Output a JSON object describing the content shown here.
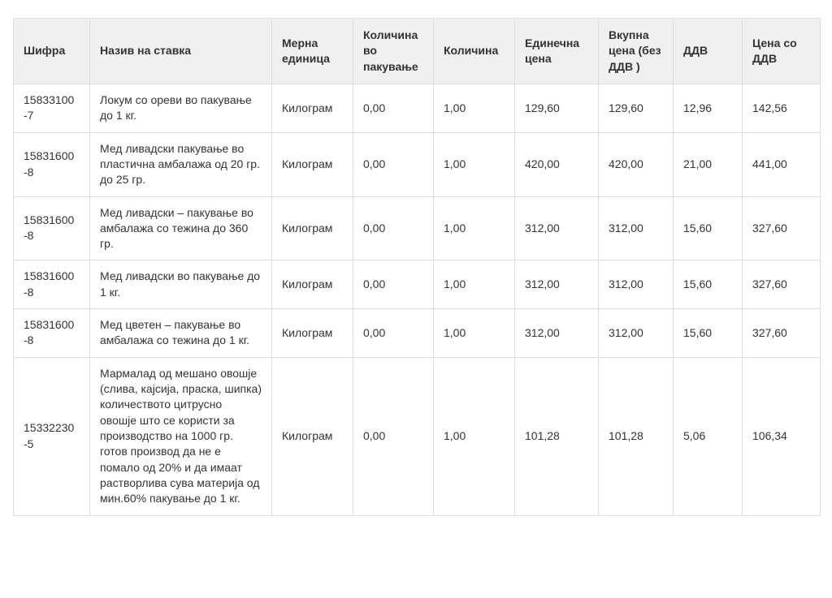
{
  "table": {
    "columns": [
      "Шифра",
      "Назив на ставка",
      "Мерна единица",
      "Количина во пакување",
      "Количина",
      "Единечна цена",
      "Вкупна цена (без ДДВ )",
      "ДДВ",
      "Цена со ДДВ"
    ],
    "rows": [
      {
        "code": "15833100\n-7",
        "name": "Локум со ореви во пакување до 1 кг.",
        "unit": "Килограм",
        "qty_per_pack": "0,00",
        "qty": "1,00",
        "unit_price": "129,60",
        "total_no_vat": "129,60",
        "vat": "12,96",
        "price_with_vat": "142,56"
      },
      {
        "code": "15831600\n-8",
        "name": "Мед ливадски пакување во пластична амбалажа од 20 гр. до 25 гр.",
        "unit": "Килограм",
        "qty_per_pack": "0,00",
        "qty": "1,00",
        "unit_price": "420,00",
        "total_no_vat": "420,00",
        "vat": "21,00",
        "price_with_vat": "441,00"
      },
      {
        "code": "15831600\n-8",
        "name": "Мед ливадски – пакување во амбалажа со тежина до 360 гр.",
        "unit": "Килограм",
        "qty_per_pack": "0,00",
        "qty": "1,00",
        "unit_price": "312,00",
        "total_no_vat": "312,00",
        "vat": "15,60",
        "price_with_vat": "327,60"
      },
      {
        "code": "15831600\n-8",
        "name": "Мед ливадски во пакување до 1 кг.",
        "unit": "Килограм",
        "qty_per_pack": "0,00",
        "qty": "1,00",
        "unit_price": "312,00",
        "total_no_vat": "312,00",
        "vat": "15,60",
        "price_with_vat": "327,60"
      },
      {
        "code": "15831600\n-8",
        "name": "Мед цветен – пакување во амбалажа со тежина до 1 кг.",
        "unit": "Килограм",
        "qty_per_pack": "0,00",
        "qty": "1,00",
        "unit_price": "312,00",
        "total_no_vat": "312,00",
        "vat": "15,60",
        "price_with_vat": "327,60"
      },
      {
        "code": "15332230\n-5",
        "name": "Мармалад од мешано овошје (слива, кајсија, праска, шипка) количеството цитрусно овошје што се користи за производство на 1000 гр. готов производ да не е помало од 20% и да имаат растворлива сува материја од мин.60% пакување до 1 кг.",
        "unit": "Килограм",
        "qty_per_pack": "0,00",
        "qty": "1,00",
        "unit_price": "101,28",
        "total_no_vat": "101,28",
        "vat": "5,06",
        "price_with_vat": "106,34"
      }
    ]
  },
  "colors": {
    "header_bg": "#f0f0f0",
    "border": "#dddddd",
    "text": "#333333"
  }
}
